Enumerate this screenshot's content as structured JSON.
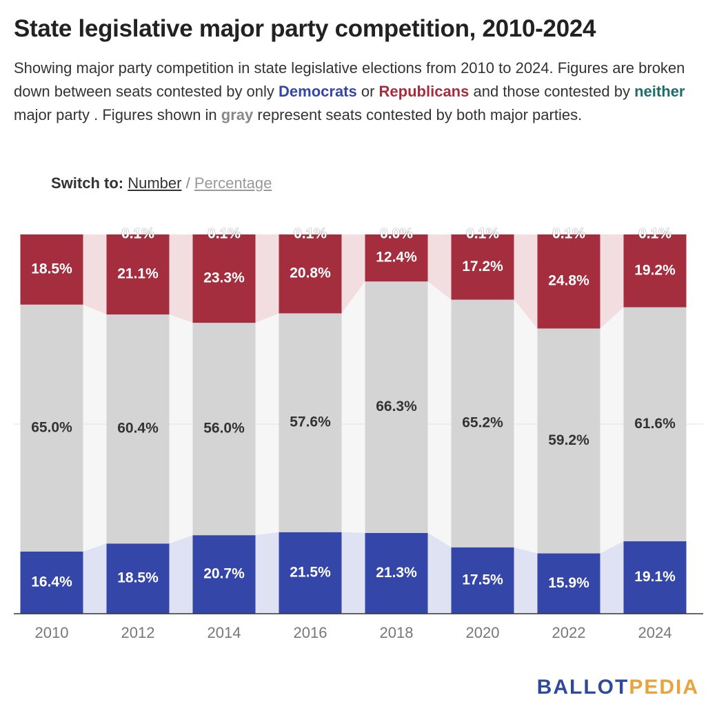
{
  "title": "State legislative major party competition, 2010-2024",
  "description": {
    "part1": "Showing major party competition in state legislative elections from 2010 to 2024. Figures are broken down between seats contested by only ",
    "democrats": "Democrats",
    "part2": " or ",
    "republicans": "Republicans",
    "part3": " and those contested by ",
    "neither": "neither",
    "part4": " major party . Figures shown in ",
    "gray": "gray",
    "part5": " represent seats contested by both major parties."
  },
  "switch": {
    "label": "Switch to:",
    "option_number": "Number",
    "separator": "/",
    "option_percentage": "Percentage"
  },
  "logo": {
    "part1": "BALLOT",
    "part2": "PEDIA"
  },
  "colors": {
    "democrat": "#3446a7",
    "republican": "#a52e3e",
    "both": "#d4d4d4",
    "neither": "#1f6b6b",
    "democrat_band": "#dfe2f3",
    "republican_band": "#f2dde0",
    "gray_band": "#f6f6f6",
    "logo_blue": "#2f4a9c",
    "logo_orange": "#e8a33d",
    "label_white": "#ffffff",
    "label_dark": "#333333"
  },
  "chart_data": {
    "type": "bar",
    "stacked": true,
    "x": [
      "2010",
      "2012",
      "2014",
      "2016",
      "2018",
      "2020",
      "2022",
      "2024"
    ],
    "ylim": [
      0,
      100
    ],
    "series": [
      {
        "name": "Democrats",
        "values": [
          16.4,
          18.5,
          20.7,
          21.5,
          21.3,
          17.5,
          15.9,
          19.1
        ],
        "labels": [
          "16.4%",
          "18.5%",
          "20.7%",
          "21.5%",
          "21.3%",
          "17.5%",
          "15.9%",
          "19.1%"
        ]
      },
      {
        "name": "gray",
        "values": [
          65.0,
          60.4,
          56.0,
          57.6,
          66.3,
          65.2,
          59.2,
          61.6
        ],
        "labels": [
          "65.0%",
          "60.4%",
          "56.0%",
          "57.6%",
          "66.3%",
          "65.2%",
          "59.2%",
          "61.6%"
        ]
      },
      {
        "name": "Republicans",
        "values": [
          18.5,
          21.1,
          23.3,
          20.8,
          12.4,
          17.2,
          24.8,
          19.2
        ],
        "labels": [
          "18.5%",
          "21.1%",
          "23.3%",
          "20.8%",
          "12.4%",
          "17.2%",
          "24.8%",
          "19.2%"
        ]
      },
      {
        "name": "neither",
        "values": [
          0.0,
          0.1,
          0.1,
          0.1,
          0.0,
          0.1,
          0.1,
          0.1
        ],
        "labels": [
          "",
          "0.1%",
          "0.1%",
          "0.1%",
          "0.0%",
          "0.1%",
          "0.1%",
          "0.1%"
        ]
      }
    ]
  }
}
